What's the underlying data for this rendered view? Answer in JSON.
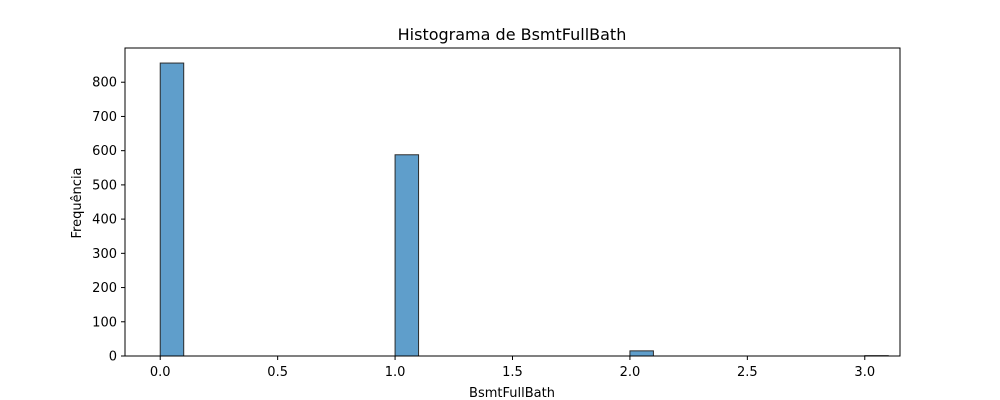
{
  "chart_data": {
    "type": "bar",
    "title": "Histograma de BsmtFullBath",
    "xlabel": "BsmtFullBath",
    "ylabel": "Frequência",
    "xlim": [
      -0.15,
      3.15
    ],
    "ylim": [
      0,
      900
    ],
    "xticks": [
      0.0,
      0.5,
      1.0,
      1.5,
      2.0,
      2.5,
      3.0
    ],
    "xtick_labels": [
      "0.0",
      "0.5",
      "1.0",
      "1.5",
      "2.0",
      "2.5",
      "3.0"
    ],
    "yticks": [
      0,
      100,
      200,
      300,
      400,
      500,
      600,
      700,
      800
    ],
    "ytick_labels": [
      "0",
      "100",
      "200",
      "300",
      "400",
      "500",
      "600",
      "700",
      "800"
    ],
    "bins": [
      {
        "x0": 0.0,
        "x1": 0.1,
        "value": 856
      },
      {
        "x0": 1.0,
        "x1": 1.1,
        "value": 588
      },
      {
        "x0": 2.0,
        "x1": 2.1,
        "value": 15
      },
      {
        "x0": 3.0,
        "x1": 3.1,
        "value": 1
      }
    ],
    "bar_color": "#5f9ecb",
    "bar_edge_color": "#2b2b2b",
    "grid": false
  }
}
